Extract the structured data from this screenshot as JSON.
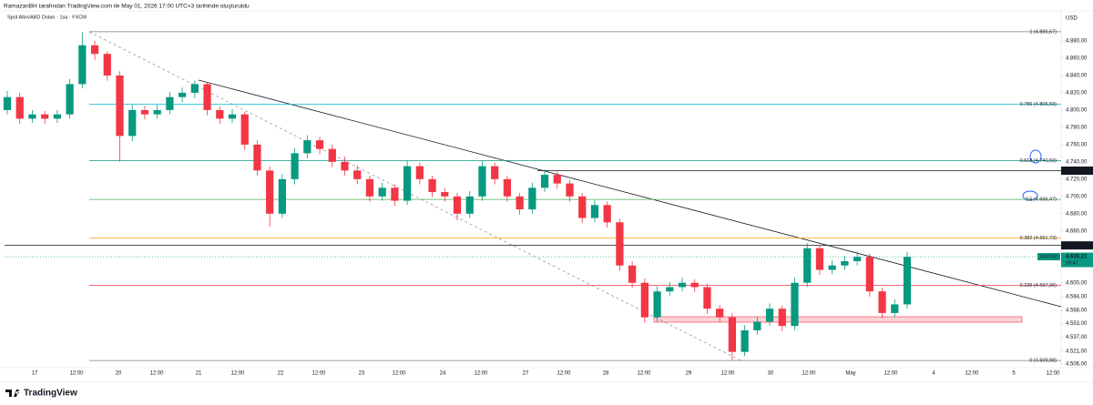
{
  "header": {
    "credit": "RamazanBH tarafından TradingView.com ile May 01, 2026 17:00 UTC+3 tarihinde oluşturuldu",
    "logo": "TradingView"
  },
  "chart_data": {
    "type": "candlestick",
    "title": "Spot Altın/ABD Doları · 1sa · FXCM",
    "currency": "USD",
    "up_color": "#089981",
    "down_color": "#f23645",
    "ylim": [
      4501.7,
      4911.6
    ],
    "yticks": [
      {
        "value": 4880,
        "label": "4.880,00"
      },
      {
        "value": 4860,
        "label": "4.860,00"
      },
      {
        "value": 4840,
        "label": "4.840,00"
      },
      {
        "value": 4820,
        "label": "4.820,00"
      },
      {
        "value": 4800,
        "label": "4.800,00"
      },
      {
        "value": 4780,
        "label": "4.780,00"
      },
      {
        "value": 4760,
        "label": "4.760,00"
      },
      {
        "value": 4740,
        "label": "4.740,00"
      },
      {
        "value": 4720,
        "label": "4.720,00"
      },
      {
        "value": 4700,
        "label": "4.700,00"
      },
      {
        "value": 4680,
        "label": "4.680,00"
      },
      {
        "value": 4660,
        "label": "4.660,00"
      },
      {
        "value": 4600,
        "label": "4.600,00"
      },
      {
        "value": 4584,
        "label": "4.584,00"
      },
      {
        "value": 4568,
        "label": "4.568,00"
      },
      {
        "value": 4553,
        "label": "4.553,00"
      },
      {
        "value": 4537,
        "label": "4.537,00"
      },
      {
        "value": 4521,
        "label": "4.521,00"
      },
      {
        "value": 4506,
        "label": "4.506,00"
      }
    ],
    "grid": false,
    "x_labels": [
      "17",
      "12:00",
      "20",
      "12:00",
      "21",
      "12:00",
      "22",
      "12:00",
      "23",
      "12:00",
      "24",
      "12:00",
      "27",
      "12:00",
      "28",
      "12:00",
      "29",
      "12:00",
      "30",
      "12:00",
      "May",
      "12:00",
      "4",
      "12:00",
      "5",
      "12:00"
    ],
    "fib_levels": [
      {
        "value": 4890.67,
        "label": "1 (4.890,67)",
        "color": "#787b86"
      },
      {
        "value": 4806.59,
        "label": "0.786 (4.806,59)",
        "color": "#00bcd4"
      },
      {
        "value": 4741.59,
        "label": "0.618 (4.741,59)",
        "color": "#089981"
      },
      {
        "value": 4696.47,
        "label": "0.5 (4.696,47)",
        "color": "#4caf50"
      },
      {
        "value": 4651.73,
        "label": "0.382 (4.651,73)",
        "color": "#f7a600"
      },
      {
        "value": 4597.06,
        "label": "0.236 (4.597,06)",
        "color": "#f23645"
      },
      {
        "value": 4509.98,
        "label": "0 (4.509,98)",
        "color": "#787b86"
      }
    ],
    "price_lines": [
      {
        "value": 4729.83,
        "label": "4.729,83"
      },
      {
        "value": 4643.28,
        "label": "4.643,28"
      }
    ],
    "last_price": {
      "value": 4630.21,
      "label": "4.630,21",
      "symbol": "XAUUSD",
      "countdown": "59:47"
    },
    "candles": [
      [
        4800,
        4822,
        4795,
        4815
      ],
      [
        4815,
        4820,
        4784,
        4790
      ],
      [
        4790,
        4800,
        4785,
        4795
      ],
      [
        4795,
        4799,
        4784,
        4790
      ],
      [
        4790,
        4800,
        4785,
        4795
      ],
      [
        4795,
        4836,
        4790,
        4830
      ],
      [
        4830,
        4890,
        4825,
        4875
      ],
      [
        4875,
        4880,
        4858,
        4865
      ],
      [
        4865,
        4868,
        4834,
        4840
      ],
      [
        4840,
        4845,
        4740,
        4770
      ],
      [
        4770,
        4806,
        4764,
        4800
      ],
      [
        4800,
        4805,
        4789,
        4795
      ],
      [
        4795,
        4806,
        4790,
        4800
      ],
      [
        4800,
        4821,
        4795,
        4815
      ],
      [
        4815,
        4826,
        4809,
        4820
      ],
      [
        4820,
        4834,
        4814,
        4830
      ],
      [
        4830,
        4832,
        4794,
        4800
      ],
      [
        4800,
        4804,
        4784,
        4790
      ],
      [
        4790,
        4801,
        4785,
        4795
      ],
      [
        4795,
        4798,
        4754,
        4760
      ],
      [
        4760,
        4765,
        4724,
        4730
      ],
      [
        4730,
        4735,
        4665,
        4680
      ],
      [
        4680,
        4726,
        4675,
        4720
      ],
      [
        4720,
        4756,
        4714,
        4750
      ],
      [
        4750,
        4771,
        4744,
        4765
      ],
      [
        4765,
        4769,
        4749,
        4755
      ],
      [
        4755,
        4760,
        4734,
        4740
      ],
      [
        4740,
        4746,
        4724,
        4730
      ],
      [
        4730,
        4736,
        4714,
        4720
      ],
      [
        4720,
        4724,
        4694,
        4700
      ],
      [
        4700,
        4716,
        4695,
        4710
      ],
      [
        4710,
        4714,
        4689,
        4695
      ],
      [
        4695,
        4741,
        4690,
        4735
      ],
      [
        4735,
        4739,
        4714,
        4720
      ],
      [
        4720,
        4724,
        4699,
        4705
      ],
      [
        4705,
        4710,
        4694,
        4700
      ],
      [
        4700,
        4704,
        4672,
        4680
      ],
      [
        4680,
        4706,
        4675,
        4700
      ],
      [
        4700,
        4741,
        4695,
        4735
      ],
      [
        4735,
        4739,
        4714,
        4720
      ],
      [
        4720,
        4724,
        4694,
        4700
      ],
      [
        4700,
        4704,
        4679,
        4685
      ],
      [
        4685,
        4716,
        4680,
        4710
      ],
      [
        4710,
        4731,
        4705,
        4725
      ],
      [
        4725,
        4729,
        4709,
        4715
      ],
      [
        4715,
        4719,
        4694,
        4700
      ],
      [
        4700,
        4704,
        4669,
        4675
      ],
      [
        4675,
        4696,
        4670,
        4690
      ],
      [
        4690,
        4694,
        4664,
        4670
      ],
      [
        4670,
        4674,
        4614,
        4620
      ],
      [
        4620,
        4625,
        4594,
        4600
      ],
      [
        4600,
        4605,
        4554,
        4560
      ],
      [
        4560,
        4596,
        4555,
        4590
      ],
      [
        4590,
        4601,
        4585,
        4595
      ],
      [
        4595,
        4606,
        4590,
        4600
      ],
      [
        4600,
        4604,
        4589,
        4595
      ],
      [
        4595,
        4599,
        4564,
        4570
      ],
      [
        4570,
        4574,
        4554,
        4560
      ],
      [
        4560,
        4565,
        4510,
        4520
      ],
      [
        4520,
        4551,
        4515,
        4545
      ],
      [
        4545,
        4561,
        4540,
        4555
      ],
      [
        4555,
        4576,
        4550,
        4570
      ],
      [
        4570,
        4574,
        4544,
        4550
      ],
      [
        4550,
        4606,
        4545,
        4600
      ],
      [
        4600,
        4646,
        4595,
        4640
      ],
      [
        4640,
        4644,
        4609,
        4615
      ],
      [
        4615,
        4626,
        4610,
        4620
      ],
      [
        4620,
        4631,
        4615,
        4625
      ],
      [
        4625,
        4636,
        4620,
        4630
      ],
      [
        4630,
        4634,
        4584,
        4590
      ],
      [
        4590,
        4594,
        4559,
        4565
      ],
      [
        4565,
        4581,
        4560,
        4575
      ],
      [
        4575,
        4636,
        4570,
        4630
      ]
    ]
  }
}
